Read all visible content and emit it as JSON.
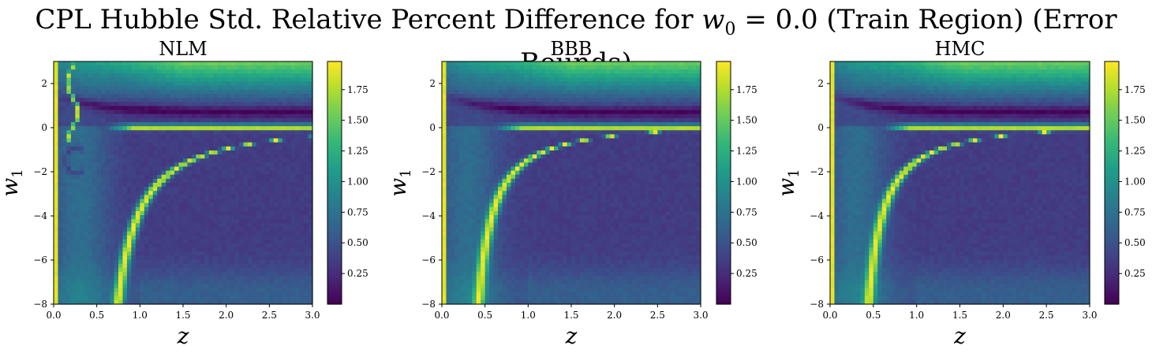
{
  "suptitle": {
    "prefix": "CPL Hubble Std. Relative Percent Difference for ",
    "math": "w",
    "math_sub": "0",
    "suffix": " = 0.0 (Train Region) (Error Bounds)"
  },
  "colormap": "viridis",
  "chart_data": [
    {
      "type": "heatmap",
      "title": "NLM",
      "xlabel": "z",
      "ylabel": "w",
      "ylabel_sub": "1",
      "xlim": [
        0.0,
        3.0
      ],
      "ylim": [
        -8,
        3
      ],
      "x_ticks": [
        0.0,
        0.5,
        1.0,
        1.5,
        2.0,
        2.5,
        3.0
      ],
      "x_tick_labels": [
        "0.0",
        "0.5",
        "1.0",
        "1.5",
        "2.0",
        "2.5",
        "3.0"
      ],
      "y_ticks": [
        -8,
        -6,
        -4,
        -2,
        0,
        2
      ],
      "y_tick_labels": [
        "−8",
        "−6",
        "−4",
        "−2",
        "0",
        "2"
      ],
      "colorbar": {
        "min": 0.0,
        "max": 1.98,
        "ticks": [
          0.25,
          0.5,
          0.75,
          1.0,
          1.25,
          1.5,
          1.75
        ],
        "tick_labels": [
          "0.25",
          "0.50",
          "0.75",
          "1.00",
          "1.25",
          "1.50",
          "1.75"
        ]
      },
      "z_description": "Approximate value field: bright ridge along curve z≈(0.55–0.2·ln-shape) rising from z=0.55 at w1=-8 to flat at w1≈0 for z>1.5; dark trough near w1≈1 band; strong anomalies near z<0.4",
      "model": {
        "ridge_z_at_bottom": 0.55,
        "ridge_scale": 0.9,
        "edge_band": true,
        "anomaly": true
      }
    },
    {
      "type": "heatmap",
      "title": "BBB",
      "xlabel": "z",
      "ylabel": "w",
      "ylabel_sub": "1",
      "xlim": [
        0.0,
        3.0
      ],
      "ylim": [
        -8,
        3
      ],
      "x_ticks": [
        0.0,
        0.5,
        1.0,
        1.5,
        2.0,
        2.5,
        3.0
      ],
      "x_tick_labels": [
        "0.0",
        "0.5",
        "1.0",
        "1.5",
        "2.0",
        "2.5",
        "3.0"
      ],
      "y_ticks": [
        -8,
        -6,
        -4,
        -2,
        0,
        2
      ],
      "y_tick_labels": [
        "−8",
        "−6",
        "−4",
        "−2",
        "0",
        "2"
      ],
      "colorbar": {
        "min": 0.0,
        "max": 1.98,
        "ticks": [
          0.25,
          0.5,
          0.75,
          1.0,
          1.25,
          1.5,
          1.75
        ],
        "tick_labels": [
          "0.25",
          "0.50",
          "0.75",
          "1.00",
          "1.25",
          "1.50",
          "1.75"
        ]
      },
      "model": {
        "ridge_z_at_bottom": 0.33,
        "ridge_scale": 0.6,
        "edge_band": true,
        "anomaly": false
      }
    },
    {
      "type": "heatmap",
      "title": "HMC",
      "xlabel": "z",
      "ylabel": "w",
      "ylabel_sub": "1",
      "xlim": [
        0.0,
        3.0
      ],
      "ylim": [
        -8,
        3
      ],
      "x_ticks": [
        0.0,
        0.5,
        1.0,
        1.5,
        2.0,
        2.5,
        3.0
      ],
      "x_tick_labels": [
        "0.0",
        "0.5",
        "1.0",
        "1.5",
        "2.0",
        "2.5",
        "3.0"
      ],
      "y_ticks": [
        -8,
        -6,
        -4,
        -2,
        0,
        2
      ],
      "y_tick_labels": [
        "−8",
        "−6",
        "−4",
        "−2",
        "0",
        "2"
      ],
      "colorbar": {
        "min": 0.0,
        "max": 1.98,
        "ticks": [
          0.25,
          0.5,
          0.75,
          1.0,
          1.25,
          1.5,
          1.75
        ],
        "tick_labels": [
          "0.25",
          "0.50",
          "0.75",
          "1.00",
          "1.25",
          "1.50",
          "1.75"
        ]
      },
      "model": {
        "ridge_z_at_bottom": 0.35,
        "ridge_scale": 0.6,
        "edge_band": true,
        "anomaly": false
      }
    }
  ]
}
